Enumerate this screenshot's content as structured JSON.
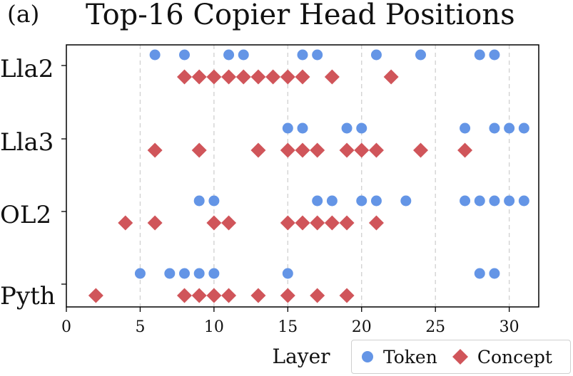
{
  "panel_label": "(a)",
  "chart_data": {
    "type": "scatter",
    "title": "Top-16 Copier Head Positions",
    "xlabel": "Layer",
    "ylabel": "",
    "xlim": [
      0,
      32
    ],
    "xticks": [
      0,
      5,
      10,
      15,
      20,
      25,
      30
    ],
    "grid": "vertical dashed",
    "legend_position": "bottom-right",
    "categories": [
      "Lla2",
      "Lla3",
      "OL2",
      "Pyth"
    ],
    "series": [
      {
        "name": "Token",
        "color": "#6495e6",
        "marker": "circle",
        "points": {
          "Lla2": [
            6,
            8,
            11,
            12,
            16,
            17,
            21,
            24,
            28,
            29
          ],
          "Lla3": [
            15,
            16,
            19,
            20,
            27,
            29,
            30,
            31
          ],
          "OL2": [
            9,
            10,
            17,
            18,
            20,
            21,
            23,
            27,
            28,
            29,
            30,
            31
          ],
          "Pyth": [
            5,
            7,
            8,
            9,
            10,
            15,
            28,
            29
          ]
        }
      },
      {
        "name": "Concept",
        "color": "#d0555a",
        "marker": "diamond",
        "points": {
          "Lla2": [
            8,
            9,
            10,
            11,
            12,
            13,
            14,
            15,
            16,
            18,
            22
          ],
          "Lla3": [
            6,
            9,
            13,
            15,
            16,
            17,
            19,
            20,
            21,
            24,
            27
          ],
          "OL2": [
            4,
            6,
            10,
            11,
            15,
            16,
            17,
            18,
            19,
            21
          ],
          "Pyth": [
            2,
            8,
            9,
            10,
            11,
            13,
            15,
            17,
            19
          ]
        }
      }
    ]
  }
}
